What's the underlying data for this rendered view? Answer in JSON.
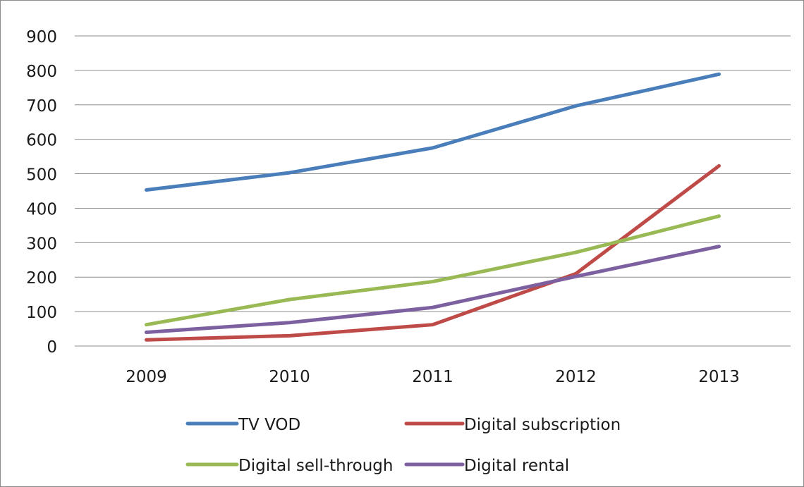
{
  "chart_data": {
    "type": "line",
    "categories": [
      "2009",
      "2010",
      "2011",
      "2012",
      "2013"
    ],
    "ylim": [
      0,
      900
    ],
    "yticks": [
      "0",
      "100",
      "200",
      "300",
      "400",
      "500",
      "600",
      "700",
      "800",
      "900"
    ],
    "grid": true,
    "legend_position": "bottom",
    "series": [
      {
        "name": "TV VOD",
        "color": "#4a7ebb",
        "values": [
          453,
          503,
          575,
          697,
          789
        ]
      },
      {
        "name": "Digital subscription",
        "color": "#be4b48",
        "values": [
          18,
          30,
          62,
          210,
          523
        ]
      },
      {
        "name": "Digital sell-through",
        "color": "#98b954",
        "values": [
          62,
          135,
          187,
          272,
          377
        ]
      },
      {
        "name": "Digital rental",
        "color": "#7d60a0",
        "values": [
          40,
          68,
          112,
          202,
          289
        ]
      }
    ]
  }
}
